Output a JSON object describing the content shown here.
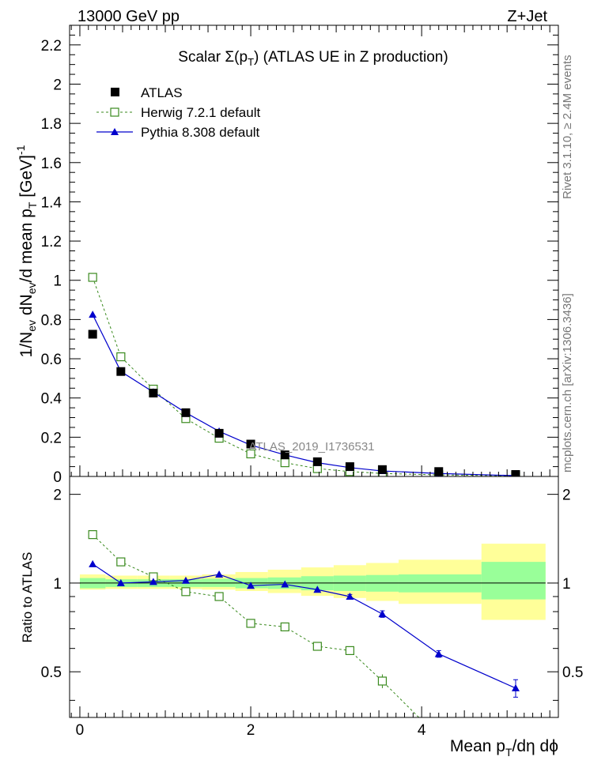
{
  "header": {
    "left": "13000 GeV pp",
    "right": "Z+Jet"
  },
  "side_text": {
    "rivet": "Rivet 3.1.10, ≥ 2.4M events",
    "mcplots": "mcplots.cern.ch [arXiv:1306.3436]"
  },
  "watermark": "ATLAS_2019_I1736531",
  "colors": {
    "atlas": "#000000",
    "herwig": "#3a8a1e",
    "pythia": "#0000cc",
    "band_inner": "#99ff99",
    "band_outer": "#ffff99"
  },
  "chart_data": [
    {
      "type": "scatter",
      "panel": "main",
      "title_prefix": "Scalar ",
      "title_sigma": "Σ(p",
      "title_sub": "T",
      "title_suffix": ") (ATLAS UE in Z production)",
      "ylabel": "1/Nev dNev/d mean pT [GeV]^-1",
      "ylim": [
        0,
        2.3
      ],
      "xlim": [
        -0.12,
        5.6
      ],
      "y_ticks": [
        "0",
        "0.2",
        "0.4",
        "0.6",
        "0.8",
        "1",
        "1.2",
        "1.4",
        "1.6",
        "1.8",
        "2",
        "2.2"
      ],
      "y_tick_values": [
        0,
        0.2,
        0.4,
        0.6,
        0.8,
        1,
        1.2,
        1.4,
        1.6,
        1.8,
        2,
        2.2
      ],
      "legend_position": "top-left",
      "series": [
        {
          "name": "ATLAS",
          "style": "black-square",
          "x": [
            0.15,
            0.48,
            0.86,
            1.24,
            1.63,
            2.0,
            2.4,
            2.78,
            3.16,
            3.54,
            4.2,
            5.1
          ],
          "y": [
            0.725,
            0.535,
            0.425,
            0.325,
            0.22,
            0.165,
            0.11,
            0.075,
            0.05,
            0.035,
            0.025,
            0.01
          ]
        },
        {
          "name": "Herwig 7.2.1 default",
          "style": "green-open-square-dashed",
          "x": [
            0.15,
            0.48,
            0.86,
            1.24,
            1.63,
            2.0,
            2.4,
            2.78,
            3.16,
            3.54,
            4.2,
            5.1
          ],
          "y": [
            1.015,
            0.61,
            0.445,
            0.295,
            0.195,
            0.115,
            0.07,
            0.04,
            0.025,
            0.015,
            0.008,
            0.003
          ]
        },
        {
          "name": "Pythia 8.308 default",
          "style": "blue-triangle-solid",
          "x": [
            0.15,
            0.48,
            0.86,
            1.24,
            1.63,
            2.0,
            2.4,
            2.78,
            3.16,
            3.54,
            4.2,
            5.1
          ],
          "y": [
            0.825,
            0.535,
            0.43,
            0.325,
            0.23,
            0.16,
            0.11,
            0.07,
            0.045,
            0.028,
            0.015,
            0.004
          ]
        }
      ]
    },
    {
      "type": "line",
      "panel": "ratio",
      "ylabel": "Ratio to ATLAS",
      "xlabel": "Mean pT/dη dϕ",
      "xlim": [
        -0.12,
        5.6
      ],
      "ylim": [
        0.35,
        2.3
      ],
      "x_ticks": [
        "0",
        "2",
        "4"
      ],
      "x_tick_values": [
        0,
        2,
        4
      ],
      "y_ticks": [
        "0.5",
        "1",
        "2"
      ],
      "y_tick_values": [
        0.5,
        1,
        2
      ],
      "bands": {
        "edges": [
          0,
          0.3,
          0.67,
          1.05,
          1.43,
          1.82,
          2.2,
          2.59,
          2.97,
          3.35,
          3.73,
          4.7,
          5.45
        ],
        "inner_lo": [
          0.96,
          0.97,
          0.97,
          0.97,
          0.97,
          0.96,
          0.955,
          0.945,
          0.94,
          0.935,
          0.93,
          0.88
        ],
        "inner_hi": [
          1.04,
          1.03,
          1.03,
          1.03,
          1.035,
          1.04,
          1.045,
          1.055,
          1.06,
          1.065,
          1.07,
          1.18
        ],
        "outer_lo": [
          0.95,
          0.955,
          0.955,
          0.955,
          0.95,
          0.94,
          0.925,
          0.905,
          0.89,
          0.87,
          0.85,
          0.75
        ],
        "outer_hi": [
          1.07,
          1.06,
          1.06,
          1.06,
          1.07,
          1.09,
          1.11,
          1.13,
          1.15,
          1.17,
          1.2,
          1.36
        ]
      },
      "series": [
        {
          "name": "Herwig 7.2.1 default",
          "x": [
            0.15,
            0.48,
            0.86,
            1.24,
            1.63,
            2.0,
            2.4,
            2.78,
            3.16,
            3.54,
            4.2
          ],
          "y": [
            1.46,
            1.18,
            1.05,
            0.935,
            0.9,
            0.73,
            0.71,
            0.61,
            0.59,
            0.465,
            0.3
          ],
          "yerr": [
            0,
            0,
            0,
            0,
            0,
            0,
            0,
            0,
            0.02,
            0.025,
            0
          ]
        },
        {
          "name": "Pythia 8.308 default",
          "x": [
            0.15,
            0.48,
            0.86,
            1.24,
            1.63,
            2.0,
            2.4,
            2.78,
            3.16,
            3.54,
            4.2,
            5.1
          ],
          "y": [
            1.16,
            1.0,
            1.01,
            1.02,
            1.07,
            0.98,
            0.99,
            0.95,
            0.9,
            0.785,
            0.575,
            0.44
          ],
          "yerr": [
            0,
            0,
            0,
            0,
            0,
            0,
            0,
            0,
            0.015,
            0.02,
            0.015,
            0.03
          ]
        }
      ]
    }
  ]
}
